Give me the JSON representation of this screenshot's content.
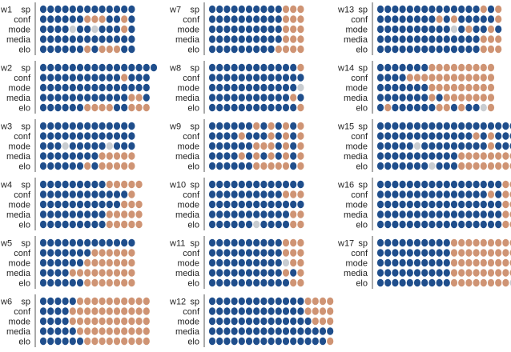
{
  "chart_data": {
    "type": "dot-matrix",
    "row_labels": [
      "sp",
      "conf",
      "mode",
      "media",
      "elo"
    ],
    "legend_codes": {
      "B": "blue",
      "O": "orange",
      "G": "grey"
    },
    "colors": {
      "B": "#1f4e8c",
      "O": "#cf9474",
      "G": "#c8ccd0"
    },
    "panels": [
      {
        "title": "w1",
        "rows": [
          "BBBBBBBBBBBBB",
          "BBBBBBOOOBBOB",
          "BBBBGBBGBBBOB",
          "BBBBBBBBBBBBB",
          "BBBBBBOBOOOBB"
        ]
      },
      {
        "title": "w2",
        "rows": [
          "BBBBBBBBBBBBBBBB",
          "BBBBBBBBBBBOBBB",
          "BBBBBBBBBBBBBBB",
          "BBBBBBBBBBBBOOB",
          "BBBBBBOOOOBBOOO"
        ]
      },
      {
        "title": "w3",
        "rows": [
          "BBBBBBBBBBBBB",
          "BBBBBBBBBBBBB",
          "BBBGBBBBBGBBB",
          "BBBBBBBBOOOOO",
          "BBBBBBOBOOOOO"
        ]
      },
      {
        "title": "w4",
        "rows": [
          "BBBBBBBBBOOOOO",
          "BBBBBBBBBBBBO",
          "BBBBBBBBBBBOOO",
          "BBBBBBBBBOOOOO",
          "BBBBBBBBBOOOOO"
        ]
      },
      {
        "title": "w5",
        "rows": [
          "BBBBBBBBBBBBB",
          "BBBBBBBOOOOOO",
          "BBBBBBOOOOOOO",
          "BBBBOOOOOOOOO",
          "BBBBBBOOOOOOO"
        ]
      },
      {
        "title": "w6",
        "rows": [
          "BBBBBOOOOOOOOOO",
          "BBBBOOOOOOOOOOO",
          "BBBBOOOOOOOOOOO",
          "BBBBBOOOOOOOOOO",
          "BBBBBBOOOOOOOOO"
        ]
      },
      {
        "title": "w7",
        "rows": [
          "BBBBBBBBBBOOO",
          "BBBBBBBBBBOOO",
          "BBBBBBBBBBOOO",
          "BBBBBBBBBBOOO",
          "BBBBBBBBBOOOO"
        ]
      },
      {
        "title": "w8",
        "rows": [
          "BBBBBBBBBBBBO",
          "BBBBBBBBBBBBB",
          "BBBBBBBBBBBBG",
          "BBBBBBBBBBBOB",
          "BBBBBBBBBBBBO"
        ]
      },
      {
        "title": "w9",
        "rows": [
          "BBBBBBOBOBOBO",
          "BBBBOBBBOBOBO",
          "BBBBBBOOOBOBO",
          "BBBBOBOBOBOBO",
          "BBBBBBOOOOOBO"
        ]
      },
      {
        "title": "w10",
        "rows": [
          "BBBBBBBBBBBBB",
          "BBBBBBBBBBOOO",
          "BBBBBBBBBBBBB",
          "BBBBBBBBBBBOO",
          "BBBBBBGBBBBOO"
        ]
      },
      {
        "title": "w11",
        "rows": [
          "BBBBBBBBBBOOO",
          "BBBBBBBBBBOOO",
          "BBBBBBBBBBGOO",
          "BBBBBBBBBBOBO",
          "BBBBBBBBBBBOO"
        ]
      },
      {
        "title": "w12",
        "rows": [
          "BBBBBBBBBBBBBOOOO",
          "BBBBBBBBBBBBBOOOO",
          "BBBBBBBBBBBBBBOOO",
          "BBBBBBBBBBBBBBBBB",
          "BBBBBBBBBBBBBBBBO"
        ]
      },
      {
        "title": "w13",
        "rows": [
          "BBBBBBBBBBBBBBOBO",
          "BBBBBBBBOBOBBBBBO",
          "BBBBBBBBBBGBOBBOB",
          "BBBBBBBBBBBBBBOOO",
          "BBBBBBBBBBBBBBOOO"
        ]
      },
      {
        "title": "w14",
        "rows": [
          "BBBBBBBOOOOOOOOO",
          "BBBBOOOOOOOOOOOO",
          "BBBBBBBOOOOOOOOO",
          "BBBBBBBOBOOOOOOO",
          "BOBBBBBBOOBOBBGO"
        ]
      },
      {
        "title": "w15",
        "rows": [
          "BBBBBBBBBBBBBBBBBBB",
          "BBBBBBBBBBBBBOBOBBB",
          "BBBBBGBBBBBBBBBOBBB",
          "BBBBBBBBBBBOOOOOOOO",
          "BBBBBBBGBBBOOOOOOOO"
        ]
      },
      {
        "title": "w16",
        "rows": [
          "BBBBBBBBBBBBBBBBBOO",
          "BBBBBBBBBBBBBBBOBOO",
          "BBBBBBBBBBBBBBBBBOO",
          "BBBBBBBBBBBBBBBBBOO",
          "BBBBBBBBBBBBBBBBBOO"
        ]
      },
      {
        "title": "w17",
        "rows": [
          "BBBBBBBBBBOOOOOOOOOO",
          "BBBBBBBBBBOOOOOOOOO",
          "BBBBBBBBBBOOOOOOOOO",
          "BBBBBBBBBBOOOOOOOOO",
          "BBBBBBBBBBOOOOOOOOG"
        ]
      }
    ]
  }
}
